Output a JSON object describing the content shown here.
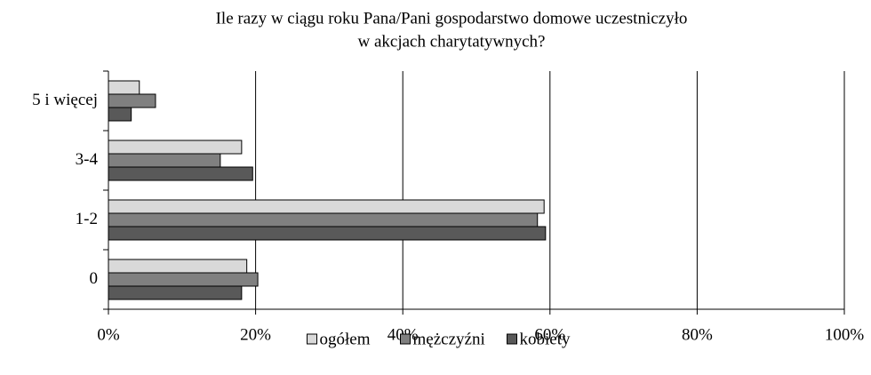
{
  "chart_data": {
    "type": "hbar",
    "title": [
      "Ile razy w ciągu roku Pana/Pani gospodarstwo domowe uczestniczyło",
      "w akcjach charytatywnych?"
    ],
    "categories": [
      "5 i więcej",
      "3-4",
      "1-2",
      "0"
    ],
    "series": [
      {
        "name": "ogółem",
        "color": "#d9d9d9",
        "values": [
          4.2,
          18.1,
          59.2,
          18.8
        ]
      },
      {
        "name": "mężczyźni",
        "color": "#808080",
        "values": [
          6.4,
          15.2,
          58.3,
          20.3
        ]
      },
      {
        "name": "kobiety",
        "color": "#595959",
        "values": [
          3.1,
          19.6,
          59.4,
          18.1
        ]
      }
    ],
    "xlim": [
      0,
      100
    ],
    "xticks": [
      {
        "value": 0,
        "label": "0%"
      },
      {
        "value": 20,
        "label": "20%"
      },
      {
        "value": 40,
        "label": "40%"
      },
      {
        "value": 60,
        "label": "60%"
      },
      {
        "value": 80,
        "label": "80%"
      },
      {
        "value": 100,
        "label": "100%"
      }
    ],
    "grid": true,
    "legend": "bottom"
  }
}
